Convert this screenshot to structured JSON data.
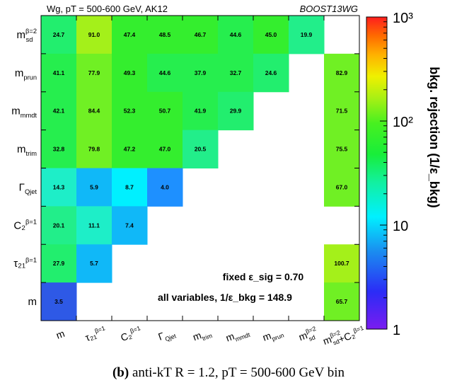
{
  "chart_data": {
    "type": "heatmap",
    "title_left": "Wg, pT = 500-600 GeV, AK12",
    "title_right": "BOOST13WG",
    "x_labels": [
      "m",
      "τ₂₁^{β=1}",
      "C₂^{β=1}",
      "Γ_Qjet",
      "m_trim",
      "m_mmdt",
      "m_prun",
      "m_sd^{β=2}",
      "m_sd^{β=2}+C₂^{β=1}"
    ],
    "y_labels": [
      "m_sd^{β=2}",
      "m_prun",
      "m_mmdt",
      "m_trim",
      "Γ_Qjet",
      "C₂^{β=1}",
      "τ₂₁^{β=1}",
      "m"
    ],
    "rows": [
      [
        24.7,
        91.0,
        47.4,
        48.5,
        46.7,
        44.6,
        45.0,
        19.9,
        null
      ],
      [
        41.1,
        77.9,
        49.3,
        44.6,
        37.9,
        32.7,
        24.6,
        null,
        82.9
      ],
      [
        42.1,
        84.4,
        52.3,
        50.7,
        41.9,
        29.9,
        null,
        null,
        71.5
      ],
      [
        32.8,
        79.8,
        47.2,
        47.0,
        20.5,
        null,
        null,
        null,
        75.5
      ],
      [
        14.3,
        5.9,
        8.7,
        4.0,
        null,
        null,
        null,
        null,
        67.0
      ],
      [
        20.1,
        11.1,
        7.4,
        null,
        null,
        null,
        null,
        null,
        null
      ],
      [
        27.9,
        5.7,
        null,
        null,
        null,
        null,
        null,
        null,
        100.7
      ],
      [
        3.5,
        null,
        null,
        null,
        null,
        null,
        null,
        null,
        65.7
      ]
    ],
    "colorbar": {
      "label": "bkg. rejection (1/ε_bkg)",
      "scale": "log",
      "range": [
        1,
        1000
      ],
      "ticks": [
        {
          "value": 1,
          "label": "1"
        },
        {
          "value": 10,
          "label": "10"
        },
        {
          "value": 100,
          "label": "10²"
        },
        {
          "value": 1000,
          "label": "10³"
        }
      ]
    },
    "annotation_line1": "fixed ε_sig = 0.70",
    "annotation_line2": "all variables, 1/ε_bkg = 148.9"
  },
  "caption": {
    "label": "(b)",
    "text": "anti-kT R = 1.2, pT = 500-600 GeV bin"
  }
}
